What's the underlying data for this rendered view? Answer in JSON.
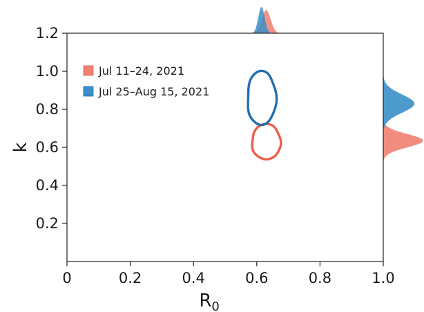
{
  "chart_data": {
    "type": "scatter",
    "title": "",
    "xlabel": "R",
    "xlabel_subscript": "0",
    "ylabel": "k",
    "xlim": [
      0.0,
      1.0
    ],
    "ylim": [
      0.0,
      1.2
    ],
    "xticks": [
      "0",
      "0.2",
      "0.4",
      "0.6",
      "0.8",
      "1.0"
    ],
    "yticks": [
      "0.2",
      "0.4",
      "0.6",
      "0.8",
      "1.0",
      "1.2"
    ],
    "grid": false,
    "legend_position": "top-left",
    "series": [
      {
        "name": "Jul 11–24, 2021",
        "color": "#e8604c",
        "fill_color": "#f08070",
        "contour": {
          "center_R0": 0.63,
          "center_k": 0.63,
          "R0_halfwidth": 0.045,
          "k_halfheight": 0.095
        },
        "marginal_R0": {
          "mean": 0.63,
          "sd": 0.014
        },
        "marginal_k": {
          "mean": 0.635,
          "sd": 0.035
        }
      },
      {
        "name": "Jul 25–Aug 15, 2021",
        "color": "#1f6fb0",
        "fill_color": "#3a8fc8",
        "contour": {
          "center_R0": 0.615,
          "center_k": 0.86,
          "R0_halfwidth": 0.045,
          "k_halfheight": 0.145
        },
        "marginal_R0": {
          "mean": 0.615,
          "sd": 0.01
        },
        "marginal_k": {
          "mean": 0.83,
          "sd": 0.048
        }
      }
    ]
  }
}
